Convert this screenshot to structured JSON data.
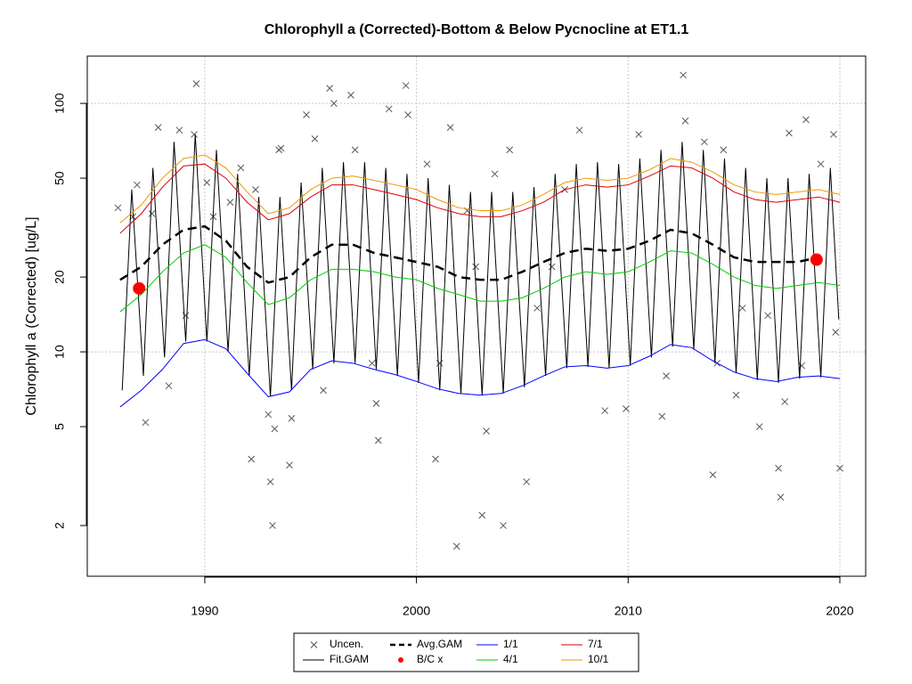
{
  "chart_data": {
    "type": "line",
    "title": "Chlorophyll a (Corrected)-Bottom & Below Pycnocline at ET1.1",
    "y_label": "Chlorophyll a (Corrected) [ug/L]",
    "xlim": [
      1984.45,
      2021.22
    ],
    "xticks": [
      1990,
      2000,
      2010,
      2020
    ],
    "ylim": [
      1.25,
      155
    ],
    "yticks": [
      2,
      5,
      10,
      20,
      50,
      100
    ],
    "y_log": true,
    "grid": true,
    "ygrid": [
      10,
      100
    ],
    "legend": "bottom",
    "series": [
      {
        "name": "Uncen.",
        "type": "scatter",
        "marker": "x",
        "color": "#555566",
        "x": [
          1985.9,
          1986.8,
          1986.6,
          1987.2,
          1987.5,
          1987.8,
          1988.3,
          1988.8,
          1989.1,
          1989.6,
          1989.5,
          1990.1,
          1990.4,
          1991.2,
          1991.7,
          1992.2,
          1992.4,
          1993.0,
          1993.1,
          1993.2,
          1993.3,
          1993.6,
          1993.5,
          1994.1,
          1994.0,
          1994.8,
          1995.2,
          1995.6,
          1995.9,
          1996.1,
          1996.9,
          1997.1,
          1997.9,
          1998.1,
          1998.2,
          1998.7,
          1999.5,
          1999.6,
          2000.5,
          2000.9,
          2001.1,
          2001.6,
          2001.9,
          2002.4,
          2002.8,
          2003.1,
          2003.3,
          2003.7,
          2004.1,
          2004.4,
          2005.2,
          2005.7,
          2006.4,
          2007.0,
          2007.7,
          2008.9,
          2009.9,
          2010.5,
          2011.6,
          2011.8,
          2012.6,
          2012.7,
          2013.6,
          2014.0,
          2014.2,
          2014.5,
          2015.1,
          2015.4,
          2016.2,
          2016.6,
          2017.1,
          2017.2,
          2017.4,
          2017.6,
          2018.2,
          2018.4,
          2019.1,
          2019.7,
          2020.0,
          2019.8
        ],
        "values": [
          38,
          47,
          35,
          5.2,
          36,
          80,
          7.3,
          78,
          14,
          120,
          75,
          48,
          35,
          40,
          55,
          3.7,
          45,
          5.6,
          3.0,
          2.0,
          4.9,
          66,
          65,
          5.4,
          3.5,
          90,
          72,
          7,
          115,
          100,
          108,
          65,
          9,
          6.2,
          4.4,
          95,
          118,
          90,
          57,
          3.7,
          9,
          80,
          1.65,
          37,
          22,
          2.2,
          4.8,
          52,
          2.0,
          65,
          3.0,
          15,
          22,
          45,
          78,
          5.8,
          5.9,
          75,
          5.5,
          8,
          130,
          85,
          70,
          3.2,
          9,
          65,
          6.7,
          15,
          5.0,
          14,
          3.4,
          2.6,
          6.3,
          76,
          8.8,
          86,
          57,
          75,
          3.4,
          12
        ]
      },
      {
        "name": "Fit.GAM",
        "type": "line",
        "color": "#000000",
        "x": [
          1986.1,
          1986.55,
          1987.1,
          1987.55,
          1988.1,
          1988.55,
          1989.1,
          1989.55,
          1990.1,
          1990.55,
          1991.1,
          1991.55,
          1992.1,
          1992.55,
          1993.1,
          1993.55,
          1994.1,
          1994.55,
          1995.1,
          1995.55,
          1996.1,
          1996.55,
          1997.1,
          1997.55,
          1998.1,
          1998.55,
          1999.1,
          1999.55,
          2000.1,
          2000.55,
          2001.1,
          2001.55,
          2002.1,
          2002.55,
          2003.1,
          2003.55,
          2004.1,
          2004.55,
          2005.1,
          2005.55,
          2006.1,
          2006.55,
          2007.1,
          2007.55,
          2008.1,
          2008.55,
          2009.1,
          2009.55,
          2010.1,
          2010.55,
          2011.1,
          2011.55,
          2012.1,
          2012.55,
          2013.1,
          2013.55,
          2014.1,
          2014.55,
          2015.1,
          2015.55,
          2016.1,
          2016.55,
          2017.1,
          2017.55,
          2018.1,
          2018.55,
          2019.1,
          2019.55,
          2019.95
        ],
        "values": [
          7,
          45,
          8,
          55,
          9.5,
          70,
          11,
          75,
          11,
          65,
          10,
          52,
          8,
          42,
          6.6,
          42,
          7,
          48,
          8.5,
          55,
          9,
          58,
          9,
          58,
          8.5,
          55,
          8,
          52,
          7.5,
          50,
          7,
          47,
          6.8,
          44,
          6.7,
          44,
          6.8,
          44,
          7.2,
          46,
          8,
          52,
          8.6,
          57,
          8.7,
          58,
          8.6,
          57,
          8.8,
          60,
          9.5,
          65,
          10.5,
          70,
          10.2,
          65,
          9,
          60,
          8.2,
          55,
          7.7,
          50,
          7.5,
          50,
          7.8,
          52,
          7.9,
          55,
          13.5
        ]
      },
      {
        "name": "Avg.GAM",
        "type": "line",
        "dashed": true,
        "width": 2.5,
        "color": "#000000",
        "x": [
          1986,
          1987,
          1988,
          1989,
          1990,
          1991,
          1992,
          1993,
          1994,
          1995,
          1996,
          1997,
          1998,
          1999,
          2000,
          2001,
          2002,
          2003,
          2004,
          2005,
          2006,
          2007,
          2008,
          2009,
          2010,
          2011,
          2012,
          2013,
          2014,
          2015,
          2016,
          2017,
          2018,
          2019
        ],
        "values": [
          19.5,
          22,
          27,
          31,
          32,
          28,
          22,
          19,
          20,
          24,
          27,
          27,
          25,
          24,
          23,
          22,
          20,
          19.5,
          19.5,
          21,
          23,
          25,
          26,
          25.5,
          26,
          28,
          31,
          30,
          27,
          24,
          23,
          23,
          23,
          24
        ]
      },
      {
        "name": "B/C x",
        "type": "scatter",
        "marker": "dot",
        "color": "#ff0000",
        "x": [
          1986.9,
          2018.9
        ],
        "values": [
          18,
          23.5
        ]
      },
      {
        "name": "1/1",
        "type": "line",
        "color": "#0000ff",
        "x": [
          1986,
          1987,
          1988,
          1989,
          1990,
          1991,
          1992,
          1993,
          1994,
          1995,
          1996,
          1997,
          1998,
          1999,
          2000,
          2001,
          2002,
          2003,
          2004,
          2005,
          2006,
          2007,
          2008,
          2009,
          2010,
          2011,
          2012,
          2013,
          2014,
          2015,
          2016,
          2017,
          2018,
          2019,
          2020
        ],
        "values": [
          6.0,
          7.0,
          8.5,
          10.8,
          11.2,
          10.3,
          8.2,
          6.6,
          6.9,
          8.5,
          9.2,
          9.0,
          8.5,
          8.1,
          7.6,
          7.1,
          6.8,
          6.7,
          6.8,
          7.3,
          8.0,
          8.7,
          8.8,
          8.6,
          8.8,
          9.6,
          10.7,
          10.4,
          9.2,
          8.3,
          7.8,
          7.6,
          7.9,
          8.0,
          7.8
        ]
      },
      {
        "name": "4/1",
        "type": "line",
        "color": "#00cc00",
        "x": [
          1986,
          1987,
          1988,
          1989,
          1990,
          1991,
          1992,
          1993,
          1994,
          1995,
          1996,
          1997,
          1998,
          1999,
          2000,
          2001,
          2002,
          2003,
          2004,
          2005,
          2006,
          2007,
          2008,
          2009,
          2010,
          2011,
          2012,
          2013,
          2014,
          2015,
          2016,
          2017,
          2018,
          2019,
          2020
        ],
        "values": [
          14.5,
          17,
          21,
          25,
          27,
          24,
          19,
          15.5,
          16.5,
          19.5,
          21.5,
          21.5,
          21,
          20,
          19.5,
          18,
          17,
          16,
          16,
          16.5,
          18,
          20,
          21,
          20.5,
          21,
          23,
          25.5,
          25,
          22.5,
          20,
          18.5,
          18,
          18.5,
          19,
          18.5
        ]
      },
      {
        "name": "7/1",
        "type": "line",
        "color": "#dd0000",
        "x": [
          1986,
          1987,
          1988,
          1989,
          1990,
          1991,
          1992,
          1993,
          1994,
          1995,
          1996,
          1997,
          1998,
          1999,
          2000,
          2001,
          2002,
          2003,
          2004,
          2005,
          2006,
          2007,
          2008,
          2009,
          2010,
          2011,
          2012,
          2013,
          2014,
          2015,
          2016,
          2017,
          2018,
          2019,
          2020
        ],
        "values": [
          30,
          36,
          46,
          56,
          57,
          50,
          40,
          34,
          36,
          42,
          47,
          47,
          45,
          43,
          41,
          38,
          36,
          35,
          35,
          37,
          40,
          45,
          47,
          46,
          47,
          51,
          56,
          55,
          50,
          44,
          41,
          40,
          41,
          42,
          40
        ]
      },
      {
        "name": "10/1",
        "type": "line",
        "color": "#ee9900",
        "x": [
          1986,
          1987,
          1988,
          1989,
          1990,
          1991,
          1992,
          1993,
          1994,
          1995,
          1996,
          1997,
          1998,
          1999,
          2000,
          2001,
          2002,
          2003,
          2004,
          2005,
          2006,
          2007,
          2008,
          2009,
          2010,
          2011,
          2012,
          2013,
          2014,
          2015,
          2016,
          2017,
          2018,
          2019,
          2020
        ],
        "values": [
          33,
          39,
          50,
          60,
          62,
          55,
          44,
          36,
          38,
          45,
          50,
          51,
          49,
          47,
          45,
          41,
          38,
          37,
          37,
          39,
          43,
          48,
          50,
          49,
          50,
          54,
          60,
          58,
          53,
          47,
          44,
          43,
          44,
          45,
          43
        ]
      }
    ]
  }
}
